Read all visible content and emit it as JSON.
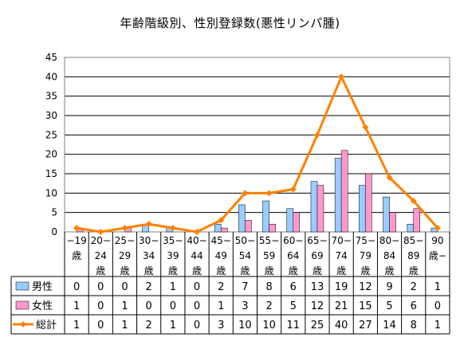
{
  "chart_data": {
    "type": "bar",
    "title": "年齢階級別、性別登録数(悪性リンパ腫)",
    "categories": [
      [
        "−19",
        "歳"
      ],
      [
        "20−",
        "24",
        "歳"
      ],
      [
        "25−",
        "29",
        "歳"
      ],
      [
        "30−",
        "34",
        "歳"
      ],
      [
        "35−",
        "39",
        "歳"
      ],
      [
        "40−",
        "44",
        "歳"
      ],
      [
        "45−",
        "49",
        "歳"
      ],
      [
        "50−",
        "54",
        "歳"
      ],
      [
        "55−",
        "59",
        "歳"
      ],
      [
        "60−",
        "64",
        "歳"
      ],
      [
        "65−",
        "69",
        "歳"
      ],
      [
        "70−",
        "74",
        "歳"
      ],
      [
        "75−",
        "79",
        "歳"
      ],
      [
        "80−",
        "84",
        "歳"
      ],
      [
        "85−",
        "89",
        "歳"
      ],
      [
        "90",
        "歳−"
      ]
    ],
    "series": [
      {
        "name": "男性",
        "type": "bar",
        "color": "#99ccff",
        "values": [
          0,
          0,
          0,
          2,
          1,
          0,
          2,
          7,
          8,
          6,
          13,
          19,
          12,
          9,
          2,
          1
        ]
      },
      {
        "name": "女性",
        "type": "bar",
        "color": "#ff99cc",
        "values": [
          1,
          0,
          1,
          0,
          0,
          0,
          1,
          3,
          2,
          5,
          12,
          21,
          15,
          5,
          6,
          0
        ]
      },
      {
        "name": "総計",
        "type": "line",
        "color": "#ff8000",
        "values": [
          1,
          0,
          1,
          2,
          1,
          0,
          3,
          10,
          10,
          11,
          25,
          40,
          27,
          14,
          8,
          1
        ]
      }
    ],
    "ylim": [
      0,
      45
    ],
    "yticks": [
      0,
      5,
      10,
      15,
      20,
      25,
      30,
      35,
      40,
      45
    ],
    "grid": true,
    "legend": "data-table",
    "xlabel": "",
    "ylabel": ""
  }
}
